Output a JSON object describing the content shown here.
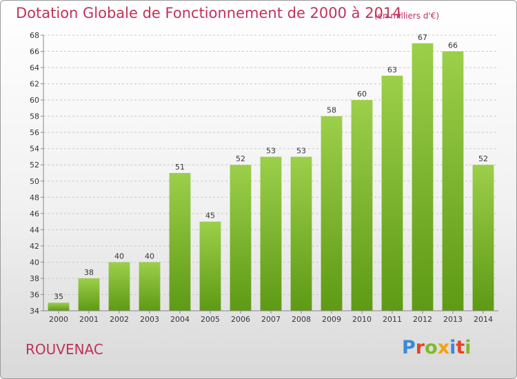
{
  "header": {
    "title": "Dotation Globale de Fonctionnement de 2000 à 2014",
    "subtitle": "(en milliers d'€)"
  },
  "footer": {
    "commune": "ROUVENAC",
    "logo": "Proxiti",
    "logo_colors": [
      "#3a8ad6",
      "#e7432a",
      "#7dbb2b",
      "#f5a10e",
      "#3a8ad6",
      "#e7432a",
      "#7dbb2b"
    ]
  },
  "chart_data": {
    "type": "bar",
    "title": "Dotation Globale de Fonctionnement de 2000 à 2014",
    "subtitle": "(en milliers d'€)",
    "categories": [
      "2000",
      "2001",
      "2002",
      "2003",
      "2004",
      "2005",
      "2006",
      "2007",
      "2008",
      "2009",
      "2010",
      "2011",
      "2012",
      "2013",
      "2014"
    ],
    "values": [
      35,
      38,
      40,
      40,
      51,
      45,
      52,
      53,
      53,
      58,
      60,
      63,
      67,
      66,
      52
    ],
    "ylim": [
      34,
      68
    ],
    "yticks": [
      34,
      36,
      38,
      40,
      42,
      44,
      46,
      48,
      50,
      52,
      54,
      56,
      58,
      60,
      62,
      64,
      66,
      68
    ],
    "grid": true,
    "legend": "none",
    "bar_color_top": "#9ccf4a",
    "bar_color_bottom": "#5e9a15",
    "grid_color": "#c8c8c8"
  }
}
